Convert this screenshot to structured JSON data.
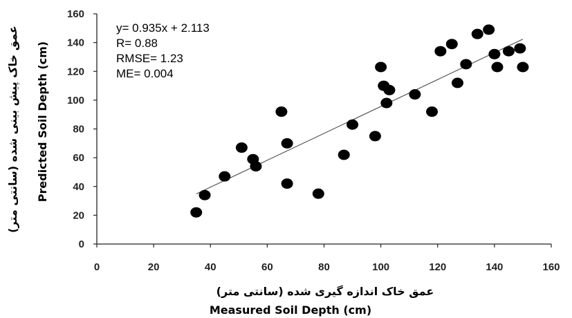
{
  "chart_data": {
    "type": "scatter",
    "x": [
      35,
      38,
      45,
      51,
      55,
      56,
      65,
      67,
      67,
      78,
      87,
      90,
      98,
      100,
      101,
      102,
      103,
      112,
      118,
      121,
      125,
      127,
      130,
      134,
      138,
      140,
      141,
      145,
      149,
      150
    ],
    "y": [
      22,
      34,
      47,
      67,
      59,
      54,
      92,
      70,
      42,
      35,
      62,
      83,
      75,
      123,
      110,
      98,
      107,
      104,
      92,
      134,
      139,
      112,
      125,
      146,
      149,
      132,
      123,
      134,
      136,
      123
    ],
    "trendline": {
      "slope": 0.935,
      "intercept": 2.113,
      "x_range": [
        35,
        150
      ]
    },
    "annotations": [
      "y= 0.935x + 2.113",
      "R= 0.88",
      "RMSE= 1.23",
      "ME= 0.004"
    ],
    "xlabel_fa": "عمق خاک اندازه گیری شده (سانتی متر)",
    "xlabel": "Measured Soil Depth (cm)",
    "ylabel_fa": "عمق خاک پیش بینی شده (سانتی متر)",
    "ylabel": "Predicted Soil Depth (cm)",
    "xlim": [
      0,
      160
    ],
    "ylim": [
      0,
      160
    ],
    "xticks": [
      "0",
      "20",
      "40",
      "60",
      "80",
      "100",
      "120",
      "140",
      "160"
    ],
    "yticks": [
      "0",
      "20",
      "40",
      "60",
      "80",
      "100",
      "120",
      "140",
      "160"
    ],
    "grid": false,
    "colors": {
      "points": "#000000",
      "trendline": "#555555",
      "axis": "#222222"
    }
  }
}
